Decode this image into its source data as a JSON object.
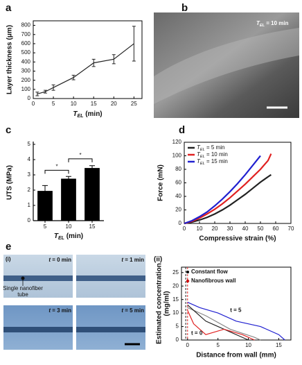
{
  "chart_data": [
    {
      "type": "line",
      "panel_label": "a",
      "xlabel": {
        "symbol": "T",
        "subscript": "EL",
        "rest": " (min)"
      },
      "ylabel": "Layer thickness (μm)",
      "x": [
        1,
        3,
        5,
        10,
        15,
        20,
        25
      ],
      "values": [
        50,
        75,
        120,
        230,
        390,
        430,
        600
      ],
      "errors": [
        20,
        15,
        30,
        25,
        40,
        50,
        190
      ],
      "color": "#222222",
      "xlim": [
        0,
        27
      ],
      "ylim": [
        0,
        850
      ],
      "xticks": [
        0,
        5,
        10,
        15,
        20,
        25
      ],
      "yticks": [
        0,
        100,
        200,
        300,
        400,
        500,
        600,
        700,
        800
      ]
    },
    {
      "type": "bar",
      "panel_label": "c",
      "xlabel": {
        "symbol": "T",
        "subscript": "EL",
        "rest": " (min)"
      },
      "ylabel": "UTS (MPa)",
      "categories": [
        "5",
        "10",
        "15"
      ],
      "values": [
        1.95,
        2.75,
        3.45
      ],
      "errors": [
        0.35,
        0.15,
        0.15
      ],
      "color": "#000000",
      "ylim": [
        0,
        5
      ],
      "yticks": [
        0,
        1,
        2,
        3,
        4,
        5
      ],
      "annotations": [
        "*",
        "*"
      ]
    },
    {
      "type": "line",
      "panel_label": "d",
      "xlabel": "Compressive strain (%)",
      "ylabel": "Force (mN)",
      "legend_prefix": {
        "symbol": "T",
        "subscript": "EL"
      },
      "legend": "upper left",
      "series": [
        {
          "name": " = 5 min",
          "color": "#222222",
          "x": [
            0,
            5,
            10,
            15,
            20,
            25,
            30,
            35,
            40,
            45,
            50,
            55,
            57
          ],
          "values": [
            0,
            2,
            5,
            9,
            14,
            20,
            27,
            35,
            43,
            52,
            61,
            69,
            72
          ]
        },
        {
          "name": " = 10 min",
          "color": "#e02020",
          "x": [
            0,
            5,
            10,
            15,
            20,
            25,
            30,
            35,
            40,
            45,
            50,
            55,
            57
          ],
          "values": [
            0,
            3,
            8,
            14,
            21,
            29,
            38,
            48,
            58,
            69,
            80,
            93,
            103
          ]
        },
        {
          "name": " = 15 min",
          "color": "#2020d0",
          "x": [
            0,
            5,
            10,
            15,
            20,
            25,
            30,
            35,
            40,
            45,
            50
          ],
          "values": [
            0,
            4,
            10,
            17,
            26,
            36,
            47,
            59,
            72,
            86,
            100
          ]
        }
      ],
      "xlim": [
        0,
        70
      ],
      "ylim": [
        0,
        120
      ],
      "xticks": [
        0,
        10,
        20,
        30,
        40,
        50,
        60,
        70
      ],
      "yticks": [
        0,
        20,
        40,
        60,
        80,
        100,
        120
      ]
    },
    {
      "type": "line",
      "panel_label": "(ii)",
      "xlabel": "Distance from wall (mm)",
      "ylabel": [
        "Estimated concentration",
        "(mg/ml)"
      ],
      "series": [
        {
          "color": "#2020d0",
          "x": [
            0,
            2,
            5,
            8,
            12,
            15,
            16
          ],
          "values": [
            14,
            12,
            10,
            7,
            5,
            2,
            0
          ]
        },
        {
          "color": "#888888",
          "x": [
            0,
            3,
            7,
            11,
            12
          ],
          "values": [
            12,
            9,
            4,
            1,
            0
          ]
        },
        {
          "color": "#222222",
          "x": [
            0,
            3,
            6,
            9,
            10
          ],
          "values": [
            13,
            7,
            4,
            1,
            0
          ]
        },
        {
          "color": "#e02020",
          "x": [
            0,
            1,
            3,
            6,
            9,
            11
          ],
          "values": [
            11,
            6,
            2,
            4,
            2,
            0
          ]
        }
      ],
      "vlines": [
        {
          "x": 0,
          "color": "#e02020"
        },
        {
          "x": -0.3,
          "color": "#222222"
        }
      ],
      "annotations": [
        "Constant flow",
        "Nanofibrous wall",
        "t = 5",
        "t = 0"
      ],
      "xlim": [
        -1,
        17
      ],
      "ylim": [
        0,
        27
      ],
      "xticks": [
        0,
        5,
        10,
        15
      ],
      "yticks": [
        0,
        5,
        10,
        15,
        20,
        25
      ]
    }
  ],
  "image_b": {
    "panel_label": "b",
    "caption": {
      "symbol": "T",
      "subscript": "EL",
      "rest": " = 10 min"
    }
  },
  "image_e": {
    "panel_label": "e",
    "sub_label": "(i)",
    "note": [
      "Single nanofiber",
      "tube"
    ],
    "frames": [
      {
        "symbol": "t",
        "rest": " = 0 min"
      },
      {
        "symbol": "t",
        "rest": " = 1 min"
      },
      {
        "symbol": "t",
        "rest": " = 3 min"
      },
      {
        "symbol": "t",
        "rest": " = 5 min"
      }
    ]
  }
}
